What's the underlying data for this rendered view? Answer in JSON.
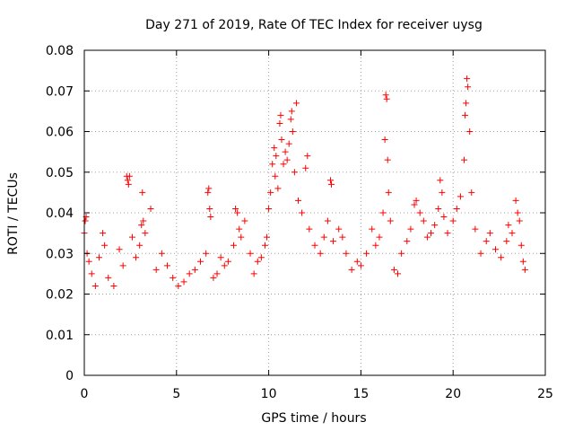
{
  "chart_data": {
    "type": "scatter",
    "title": "Day 271 of 2019, Rate Of TEC Index for receiver uysg",
    "xlabel": "GPS time / hours",
    "ylabel": "ROTI / TECUs",
    "xlim": [
      0,
      25
    ],
    "ylim": [
      0,
      0.08
    ],
    "x_ticks": [
      0,
      5,
      10,
      15,
      20,
      25
    ],
    "y_ticks": [
      0,
      0.01,
      0.02,
      0.03,
      0.04,
      0.05,
      0.06,
      0.07,
      0.08
    ],
    "x_tick_labels": [
      "0",
      "5",
      "10",
      "15",
      "20",
      "25"
    ],
    "y_tick_labels": [
      "0",
      "0.01",
      "0.02",
      "0.03",
      "0.04",
      "0.05",
      "0.06",
      "0.07",
      "0.08"
    ],
    "grid": true,
    "marker": "+",
    "color": "#ff0000",
    "series": [
      {
        "name": "ROTI",
        "points": [
          [
            0.0,
            0.035
          ],
          [
            0.05,
            0.038
          ],
          [
            0.1,
            0.039
          ],
          [
            0.15,
            0.03
          ],
          [
            0.25,
            0.028
          ],
          [
            0.4,
            0.025
          ],
          [
            0.6,
            0.022
          ],
          [
            0.8,
            0.029
          ],
          [
            1.0,
            0.035
          ],
          [
            1.1,
            0.032
          ],
          [
            1.3,
            0.024
          ],
          [
            1.6,
            0.022
          ],
          [
            1.9,
            0.031
          ],
          [
            2.1,
            0.027
          ],
          [
            2.3,
            0.049
          ],
          [
            2.35,
            0.048
          ],
          [
            2.4,
            0.047
          ],
          [
            2.45,
            0.049
          ],
          [
            2.6,
            0.034
          ],
          [
            2.8,
            0.029
          ],
          [
            3.0,
            0.032
          ],
          [
            3.1,
            0.037
          ],
          [
            3.2,
            0.038
          ],
          [
            3.3,
            0.035
          ],
          [
            3.15,
            0.045
          ],
          [
            3.6,
            0.041
          ],
          [
            3.9,
            0.026
          ],
          [
            4.2,
            0.03
          ],
          [
            4.5,
            0.027
          ],
          [
            4.8,
            0.024
          ],
          [
            5.1,
            0.022
          ],
          [
            5.4,
            0.023
          ],
          [
            5.7,
            0.025
          ],
          [
            6.0,
            0.026
          ],
          [
            6.3,
            0.028
          ],
          [
            6.6,
            0.03
          ],
          [
            6.7,
            0.045
          ],
          [
            6.75,
            0.046
          ],
          [
            6.8,
            0.041
          ],
          [
            6.85,
            0.039
          ],
          [
            7.0,
            0.024
          ],
          [
            7.2,
            0.025
          ],
          [
            7.4,
            0.029
          ],
          [
            7.6,
            0.027
          ],
          [
            7.8,
            0.028
          ],
          [
            8.1,
            0.032
          ],
          [
            8.2,
            0.041
          ],
          [
            8.3,
            0.04
          ],
          [
            8.4,
            0.036
          ],
          [
            8.5,
            0.034
          ],
          [
            8.7,
            0.038
          ],
          [
            9.0,
            0.03
          ],
          [
            9.2,
            0.025
          ],
          [
            9.4,
            0.028
          ],
          [
            9.6,
            0.029
          ],
          [
            9.8,
            0.032
          ],
          [
            9.9,
            0.034
          ],
          [
            10.0,
            0.041
          ],
          [
            10.1,
            0.045
          ],
          [
            10.2,
            0.052
          ],
          [
            10.3,
            0.056
          ],
          [
            10.35,
            0.049
          ],
          [
            10.4,
            0.054
          ],
          [
            10.5,
            0.046
          ],
          [
            10.6,
            0.062
          ],
          [
            10.65,
            0.064
          ],
          [
            10.7,
            0.058
          ],
          [
            10.8,
            0.052
          ],
          [
            10.9,
            0.055
          ],
          [
            11.0,
            0.053
          ],
          [
            11.1,
            0.057
          ],
          [
            11.2,
            0.063
          ],
          [
            11.25,
            0.065
          ],
          [
            11.3,
            0.06
          ],
          [
            11.4,
            0.05
          ],
          [
            11.5,
            0.067
          ],
          [
            11.6,
            0.043
          ],
          [
            11.8,
            0.04
          ],
          [
            12.0,
            0.051
          ],
          [
            12.1,
            0.054
          ],
          [
            12.2,
            0.036
          ],
          [
            12.5,
            0.032
          ],
          [
            12.8,
            0.03
          ],
          [
            13.0,
            0.034
          ],
          [
            13.2,
            0.038
          ],
          [
            13.35,
            0.048
          ],
          [
            13.4,
            0.047
          ],
          [
            13.5,
            0.033
          ],
          [
            13.8,
            0.036
          ],
          [
            14.0,
            0.034
          ],
          [
            14.2,
            0.03
          ],
          [
            14.5,
            0.026
          ],
          [
            14.8,
            0.028
          ],
          [
            15.0,
            0.027
          ],
          [
            15.3,
            0.03
          ],
          [
            15.6,
            0.036
          ],
          [
            15.8,
            0.032
          ],
          [
            16.0,
            0.034
          ],
          [
            16.2,
            0.04
          ],
          [
            16.3,
            0.058
          ],
          [
            16.35,
            0.069
          ],
          [
            16.4,
            0.068
          ],
          [
            16.45,
            0.053
          ],
          [
            16.5,
            0.045
          ],
          [
            16.6,
            0.038
          ],
          [
            16.8,
            0.026
          ],
          [
            17.0,
            0.025
          ],
          [
            17.2,
            0.03
          ],
          [
            17.5,
            0.033
          ],
          [
            17.7,
            0.036
          ],
          [
            17.9,
            0.042
          ],
          [
            18.0,
            0.043
          ],
          [
            18.2,
            0.04
          ],
          [
            18.4,
            0.038
          ],
          [
            18.6,
            0.034
          ],
          [
            18.8,
            0.035
          ],
          [
            19.0,
            0.037
          ],
          [
            19.2,
            0.041
          ],
          [
            19.3,
            0.048
          ],
          [
            19.4,
            0.045
          ],
          [
            19.5,
            0.039
          ],
          [
            19.7,
            0.035
          ],
          [
            20.0,
            0.038
          ],
          [
            20.2,
            0.041
          ],
          [
            20.4,
            0.044
          ],
          [
            20.6,
            0.053
          ],
          [
            20.65,
            0.064
          ],
          [
            20.7,
            0.067
          ],
          [
            20.75,
            0.073
          ],
          [
            20.8,
            0.071
          ],
          [
            20.9,
            0.06
          ],
          [
            21.0,
            0.045
          ],
          [
            21.2,
            0.036
          ],
          [
            21.5,
            0.03
          ],
          [
            21.8,
            0.033
          ],
          [
            22.0,
            0.035
          ],
          [
            22.3,
            0.031
          ],
          [
            22.6,
            0.029
          ],
          [
            22.9,
            0.033
          ],
          [
            23.0,
            0.037
          ],
          [
            23.2,
            0.035
          ],
          [
            23.4,
            0.043
          ],
          [
            23.5,
            0.04
          ],
          [
            23.6,
            0.038
          ],
          [
            23.7,
            0.032
          ],
          [
            23.8,
            0.028
          ],
          [
            23.9,
            0.026
          ]
        ]
      }
    ]
  }
}
